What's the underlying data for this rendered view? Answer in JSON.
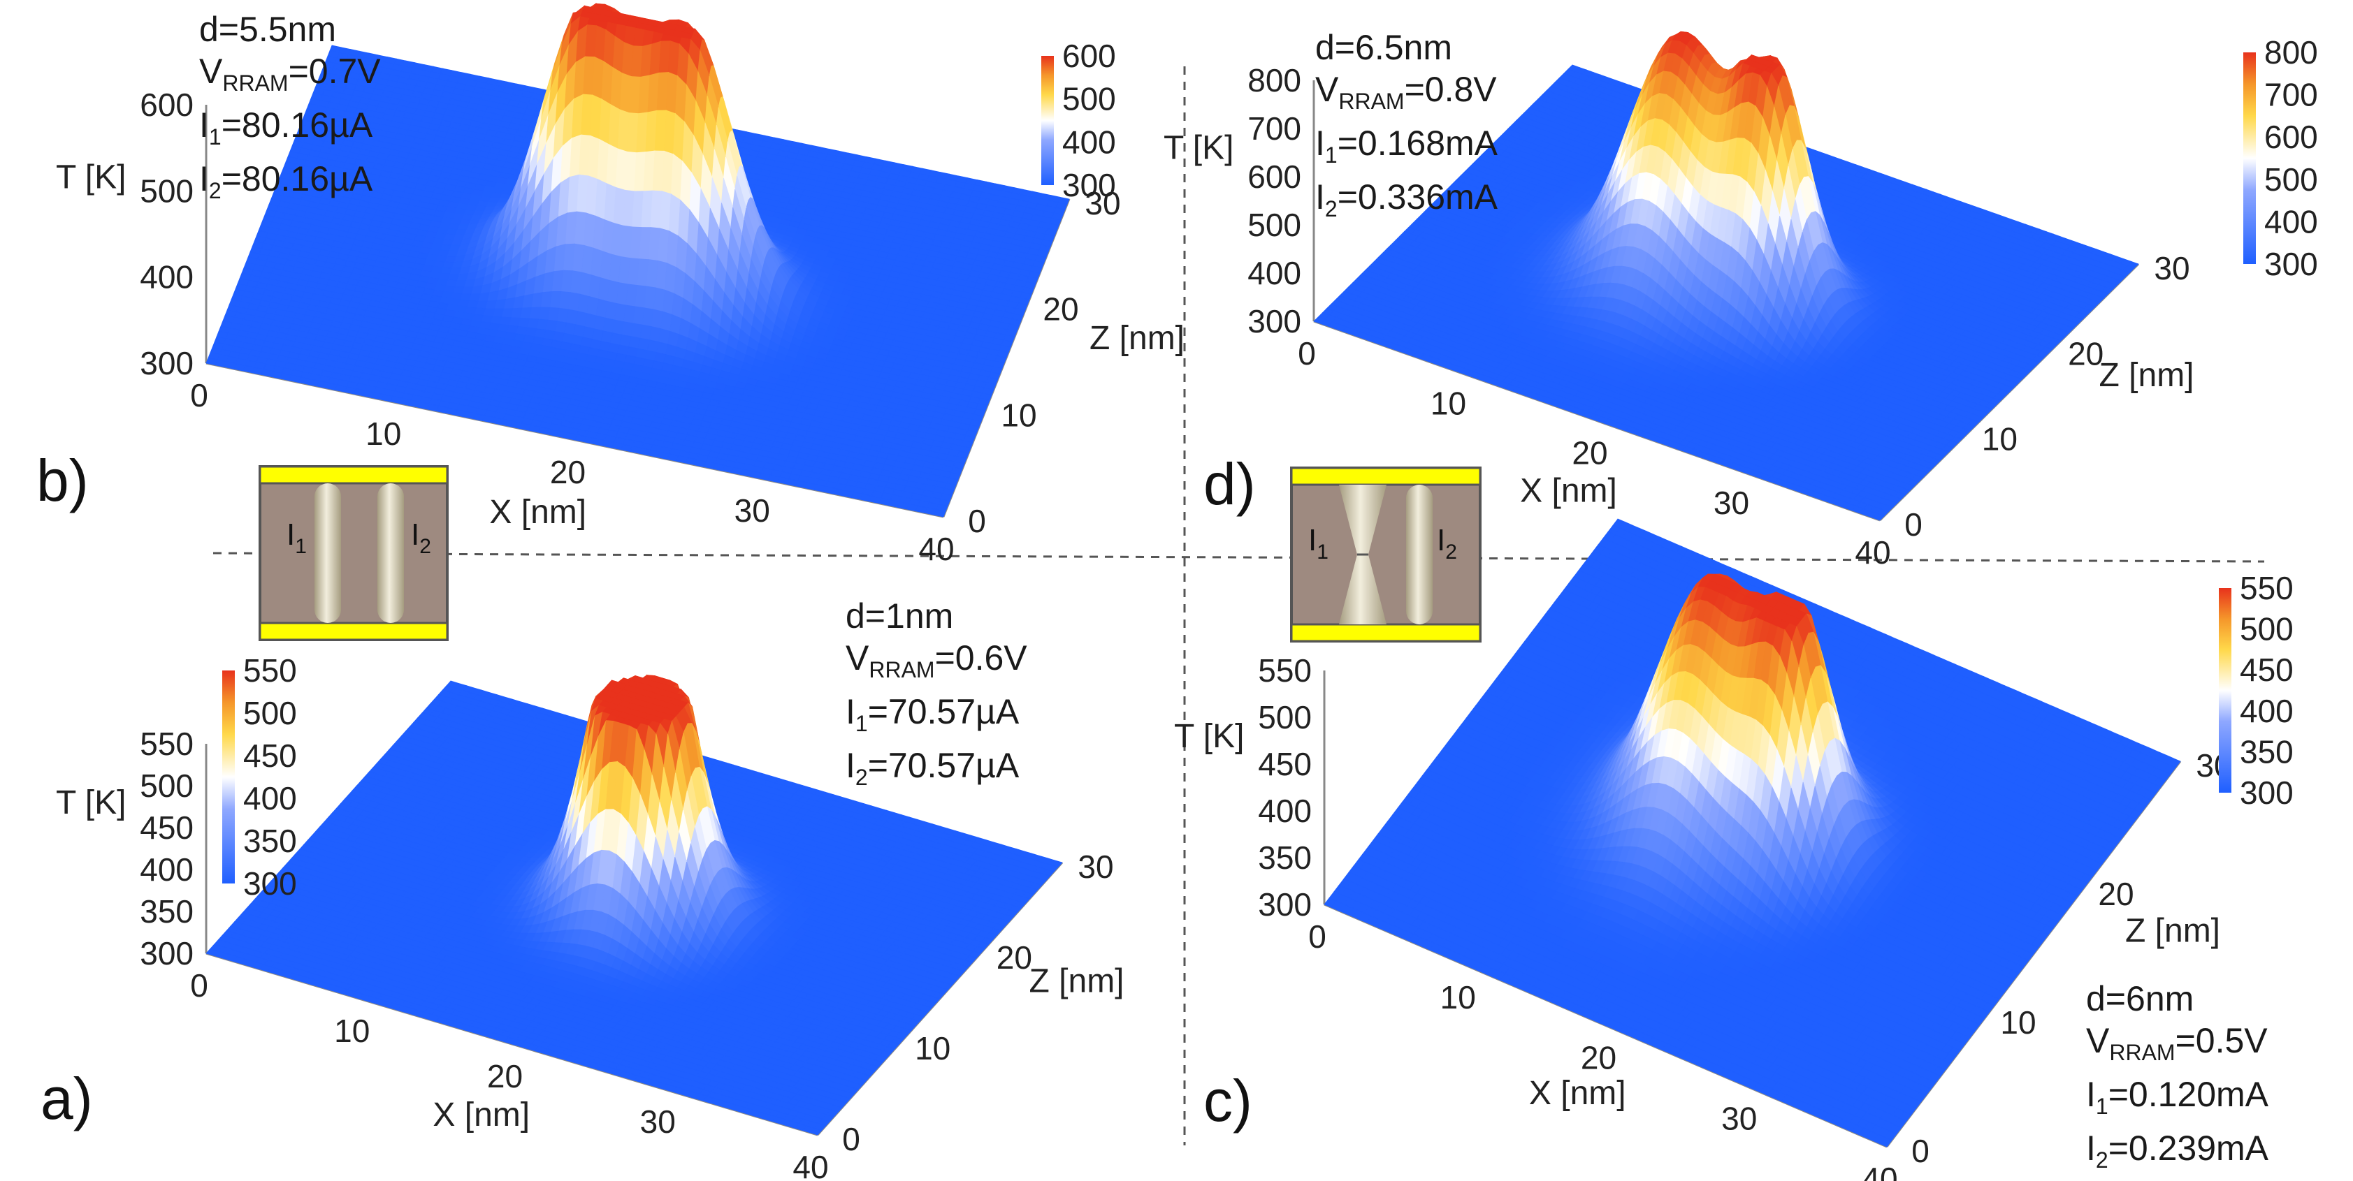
{
  "chart_data": [
    {
      "type": "surface3d",
      "panel": "a)",
      "params": {
        "d": "d=1nm",
        "V_pre": "V",
        "V_sub": "RRAM",
        "V_post": "=0.6V",
        "I1_pre": "I",
        "I1_sub": "1",
        "I1_post": "=70.57µA",
        "I2_pre": "I",
        "I2_sub": "2",
        "I2_post": "=70.57µA"
      },
      "xlabel": "X [nm]",
      "zlabel": "Z [nm]",
      "ylabel": "T [K]",
      "xlim": [
        0,
        40
      ],
      "zlim": [
        0,
        30
      ],
      "ylim": [
        300,
        550
      ],
      "x_ticks": [
        "0",
        "10",
        "20",
        "30",
        "40"
      ],
      "z_ticks": [
        "0",
        "10",
        "20",
        "30"
      ],
      "t_ticks": [
        "300",
        "350",
        "400",
        "450",
        "500",
        "550"
      ],
      "colorbar": {
        "min": 300,
        "max": 550,
        "ticks": [
          "300",
          "350",
          "400",
          "450",
          "500",
          "550"
        ]
      },
      "peaks": [
        {
          "x": 19.5,
          "z": 15,
          "T": 550,
          "wx": 2.4,
          "wz": 2.4
        },
        {
          "x": 21.5,
          "z": 15,
          "T": 550,
          "wx": 2.4,
          "wz": 2.4
        }
      ]
    },
    {
      "type": "surface3d",
      "panel": "b)",
      "params": {
        "d": "d=5.5nm",
        "V_pre": "V",
        "V_sub": "RRAM",
        "V_post": "=0.7V",
        "I1_pre": "I",
        "I1_sub": "1",
        "I1_post": "=80.16µA",
        "I2_pre": "I",
        "I2_sub": "2",
        "I2_post": "=80.16µA"
      },
      "xlabel": "X [nm]",
      "zlabel": "Z [nm]",
      "ylabel": "T [K]",
      "xlim": [
        0,
        40
      ],
      "zlim": [
        0,
        30
      ],
      "ylim": [
        300,
        600
      ],
      "x_ticks": [
        "0",
        "10",
        "20",
        "30",
        "40"
      ],
      "z_ticks": [
        "0",
        "10",
        "20",
        "30"
      ],
      "t_ticks": [
        "300",
        "400",
        "500",
        "600"
      ],
      "colorbar": {
        "min": 300,
        "max": 600,
        "ticks": [
          "300",
          "400",
          "500",
          "600"
        ]
      },
      "peaks": [
        {
          "x": 17.25,
          "z": 15,
          "T": 600,
          "wx": 2.4,
          "wz": 2.4
        },
        {
          "x": 22.75,
          "z": 15,
          "T": 600,
          "wx": 2.4,
          "wz": 2.4
        }
      ]
    },
    {
      "type": "surface3d",
      "panel": "c)",
      "params": {
        "d": "d=6nm",
        "V_pre": "V",
        "V_sub": "RRAM",
        "V_post": "=0.5V",
        "I1_pre": "I",
        "I1_sub": "1",
        "I1_post": "=0.120mA",
        "I2_pre": "I",
        "I2_sub": "2",
        "I2_post": "=0.239mA"
      },
      "xlabel": "X [nm]",
      "zlabel": "Z [nm]",
      "ylabel": "T [K]",
      "xlim": [
        0,
        40
      ],
      "zlim": [
        0,
        30
      ],
      "ylim": [
        300,
        550
      ],
      "x_ticks": [
        "0",
        "10",
        "20",
        "30",
        "40"
      ],
      "z_ticks": [
        "0",
        "10",
        "20",
        "30"
      ],
      "t_ticks": [
        "300",
        "350",
        "400",
        "450",
        "500",
        "550"
      ],
      "colorbar": {
        "min": 300,
        "max": 550,
        "ticks": [
          "300",
          "350",
          "400",
          "450",
          "500",
          "550"
        ]
      },
      "peaks": [
        {
          "x": 17,
          "z": 15,
          "T": 550,
          "wx": 3.2,
          "wz": 3.2
        },
        {
          "x": 23,
          "z": 15,
          "T": 540,
          "wx": 2.2,
          "wz": 2.2
        }
      ]
    },
    {
      "type": "surface3d",
      "panel": "d)",
      "params": {
        "d": "d=6.5nm",
        "V_pre": "V",
        "V_sub": "RRAM",
        "V_post": "=0.8V",
        "I1_pre": "I",
        "I1_sub": "1",
        "I1_post": "=0.168mA",
        "I2_pre": "I",
        "I2_sub": "2",
        "I2_post": "=0.336mA"
      },
      "xlabel": "X [nm]",
      "zlabel": "Z [nm]",
      "ylabel": "T [K]",
      "xlim": [
        0,
        40
      ],
      "zlim": [
        0,
        30
      ],
      "ylim": [
        300,
        800
      ],
      "x_ticks": [
        "0",
        "10",
        "20",
        "30",
        "40"
      ],
      "z_ticks": [
        "0",
        "10",
        "20",
        "30"
      ],
      "t_ticks": [
        "300",
        "400",
        "500",
        "600",
        "700",
        "800"
      ],
      "colorbar": {
        "min": 300,
        "max": 800,
        "ticks": [
          "300",
          "400",
          "500",
          "600",
          "700",
          "800"
        ]
      },
      "peaks": [
        {
          "x": 16.75,
          "z": 15,
          "T": 800,
          "wx": 3.2,
          "wz": 3.2
        },
        {
          "x": 23.25,
          "z": 15,
          "T": 780,
          "wx": 2.2,
          "wz": 2.2
        }
      ]
    }
  ],
  "insets": [
    {
      "name": "inset-uniform",
      "label1_pre": "I",
      "label1_sub": "1",
      "label2_pre": "I",
      "label2_sub": "2"
    },
    {
      "name": "inset-hourglass",
      "label1_pre": "I",
      "label1_sub": "1",
      "label2_pre": "I",
      "label2_sub": "2"
    }
  ],
  "colors": {
    "surface_low": "#1f5fff",
    "surface_mid": "#ffffff",
    "surface_high": "#e8321c",
    "electrode": "#ffff00",
    "oxide": "#9e8a80",
    "filament": "#d8d2bc"
  }
}
